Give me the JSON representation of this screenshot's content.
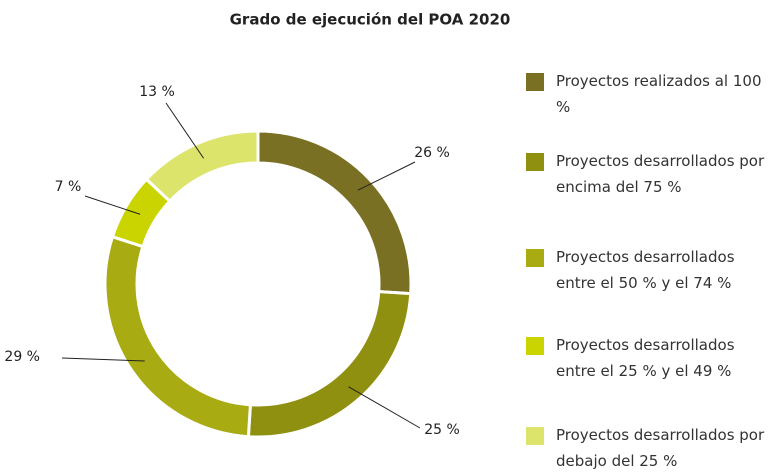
{
  "chart_data": {
    "type": "donut",
    "title": "Grado de ejecución del POA 2020",
    "series": [
      {
        "name": "Proyectos realizados al 100 %",
        "color": "#7a7024"
      },
      {
        "name": "Proyectos desarrollados por encima del 75 %",
        "color": "#8f8f10"
      },
      {
        "name": "Proyectos desarrollados entre el 50 % y el 74 %",
        "color": "#a8ab12"
      },
      {
        "name": "Proyectos desarrollados entre el 25 % y el 49 %",
        "color": "#c9d400"
      },
      {
        "name": "Proyectos desarrollados por debajo del 25 %",
        "color": "#dde46c"
      }
    ],
    "values": [
      26,
      25,
      29,
      7,
      13
    ],
    "value_labels": [
      "26 %",
      "25 %",
      "29 %",
      "7 %",
      "13 %"
    ]
  }
}
